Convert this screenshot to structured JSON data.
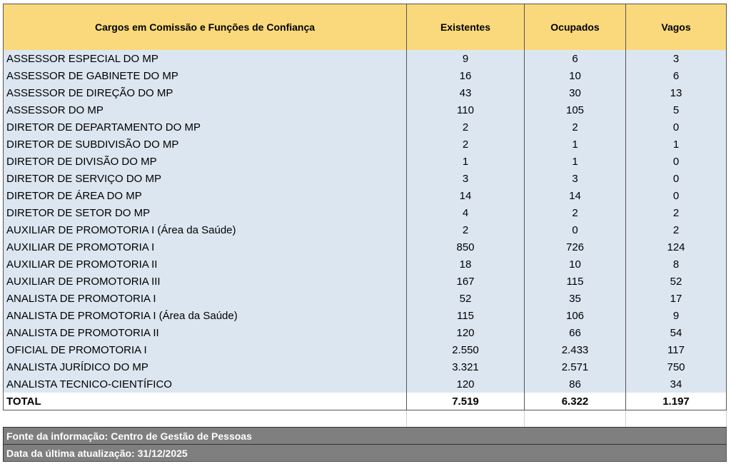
{
  "table": {
    "header": [
      "Cargos em Comissão e Funções de Confiança",
      "Existentes",
      "Ocupados",
      "Vagos"
    ],
    "rows": [
      [
        "ASSESSOR ESPECIAL DO MP",
        "9",
        "6",
        "3"
      ],
      [
        "ASSESSOR DE GABINETE DO MP",
        "16",
        "10",
        "6"
      ],
      [
        "ASSESSOR DE DIREÇÃO DO MP",
        "43",
        "30",
        "13"
      ],
      [
        "ASSESSOR DO MP",
        "110",
        "105",
        "5"
      ],
      [
        "DIRETOR DE DEPARTAMENTO DO MP",
        "2",
        "2",
        "0"
      ],
      [
        "DIRETOR DE SUBDIVISÃO DO MP",
        "2",
        "1",
        "1"
      ],
      [
        "DIRETOR DE DIVISÃO DO MP",
        "1",
        "1",
        "0"
      ],
      [
        "DIRETOR DE SERVIÇO DO MP",
        "3",
        "3",
        "0"
      ],
      [
        "DIRETOR DE ÁREA DO MP",
        "14",
        "14",
        "0"
      ],
      [
        "DIRETOR DE SETOR DO MP",
        "4",
        "2",
        "2"
      ],
      [
        "AUXILIAR DE PROMOTORIA I (Área da Saúde)",
        "2",
        "0",
        "2"
      ],
      [
        "AUXILIAR DE PROMOTORIA I",
        "850",
        "726",
        "124"
      ],
      [
        "AUXILIAR DE PROMOTORIA II",
        "18",
        "10",
        "8"
      ],
      [
        "AUXILIAR DE PROMOTORIA III",
        "167",
        "115",
        "52"
      ],
      [
        "ANALISTA DE PROMOTORIA I",
        "52",
        "35",
        "17"
      ],
      [
        "ANALISTA DE PROMOTORIA I (Área da Saúde)",
        "115",
        "106",
        "9"
      ],
      [
        "ANALISTA DE PROMOTORIA II",
        "120",
        "66",
        "54"
      ],
      [
        "OFICIAL DE PROMOTORIA I",
        "2.550",
        "2.433",
        "117"
      ],
      [
        "ANALISTA JURÍDICO DO MP",
        "3.321",
        "2.571",
        "750"
      ],
      [
        "ANALISTA TECNICO-CIENTÍFICO",
        "120",
        "86",
        "34"
      ]
    ],
    "total": [
      "TOTAL",
      "7.519",
      "6.322",
      "1.197"
    ]
  },
  "footer": [
    "Fonte da informação: Centro de Gestão de Pessoas",
    "Data da última atualização: 31/12/2025"
  ]
}
